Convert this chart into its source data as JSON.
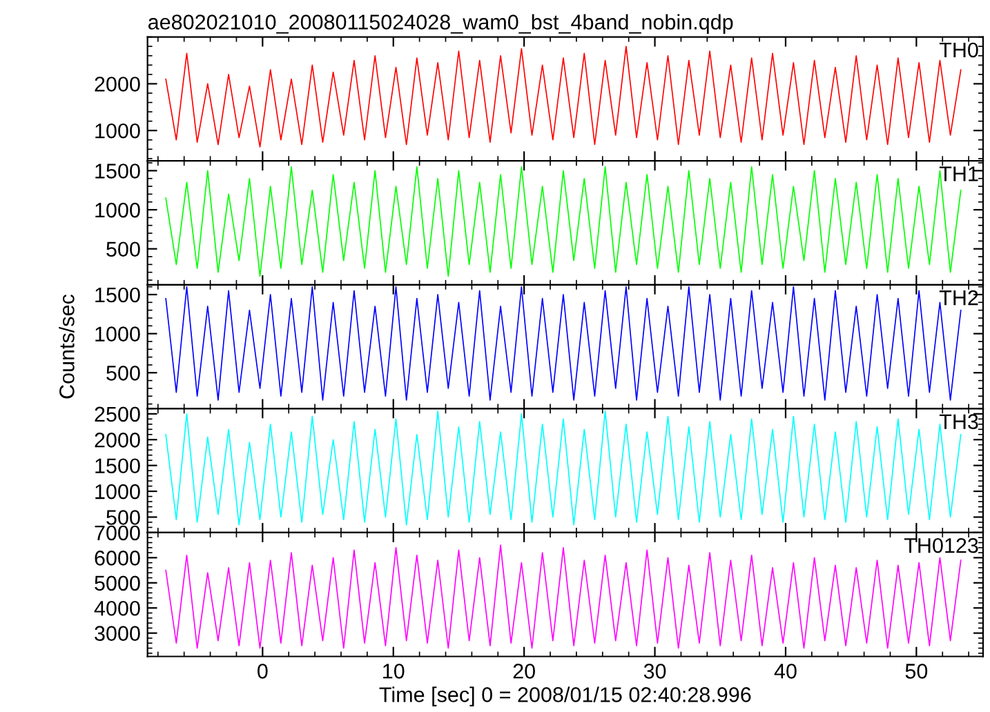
{
  "chart_data": [
    {
      "type": "line",
      "title": "ae802021010_20080115024028_wam0_bst_4band_nobin.qdp",
      "x": [
        -7.4,
        -6.6,
        -5.8,
        -5.0,
        -4.2,
        -3.4,
        -2.6,
        -1.8,
        -1.0,
        -0.2,
        0.6,
        1.4,
        2.2,
        3.0,
        3.8,
        4.6,
        5.4,
        6.2,
        7.0,
        7.8,
        8.6,
        9.4,
        10.2,
        11.0,
        11.8,
        12.6,
        13.4,
        14.2,
        15.0,
        15.8,
        16.6,
        17.4,
        18.2,
        19.0,
        19.8,
        20.6,
        21.4,
        22.2,
        23.0,
        23.8,
        24.6,
        25.4,
        26.2,
        27.0,
        27.8,
        28.6,
        29.4,
        30.2,
        31.0,
        31.8,
        32.6,
        33.4,
        34.2,
        35.0,
        35.8,
        36.6,
        37.4,
        38.2,
        39.0,
        39.8,
        40.6,
        41.4,
        42.2,
        43.0,
        43.8,
        44.6,
        45.4,
        46.2,
        47.0,
        47.8,
        48.6,
        49.4,
        50.2,
        51.0,
        51.8,
        52.6,
        53.4
      ],
      "series": [
        {
          "name": "TH0",
          "color": "#ff0000",
          "values": [
            2100,
            800,
            2650,
            750,
            2000,
            700,
            2200,
            850,
            1950,
            650,
            2300,
            800,
            2100,
            700,
            2400,
            750,
            2250,
            900,
            2500,
            800,
            2600,
            850,
            2350,
            700,
            2550,
            900,
            2450,
            800,
            2700,
            850,
            2500,
            750,
            2600,
            950,
            2750,
            900,
            2400,
            800,
            2550,
            850,
            2650,
            700,
            2500,
            900,
            2800,
            850,
            2450,
            800,
            2600,
            700,
            2500,
            900,
            2700,
            850,
            2400,
            750,
            2550,
            800,
            2650,
            900,
            2450,
            700,
            2500,
            850,
            2350,
            750,
            2600,
            800,
            2400,
            700,
            2550,
            850,
            2450,
            750,
            2500,
            900,
            2300
          ]
        }
      ],
      "xlim": [
        -8.8,
        55.1
      ],
      "xticks": [
        0,
        10,
        20,
        30,
        40,
        50
      ],
      "ylim": [
        350,
        3000
      ],
      "yticks": [
        1000,
        2000
      ],
      "tick_labels": "y"
    },
    {
      "type": "line",
      "x": [
        -7.4,
        -6.6,
        -5.8,
        -5.0,
        -4.2,
        -3.4,
        -2.6,
        -1.8,
        -1.0,
        -0.2,
        0.6,
        1.4,
        2.2,
        3.0,
        3.8,
        4.6,
        5.4,
        6.2,
        7.0,
        7.8,
        8.6,
        9.4,
        10.2,
        11.0,
        11.8,
        12.6,
        13.4,
        14.2,
        15.0,
        15.8,
        16.6,
        17.4,
        18.2,
        19.0,
        19.8,
        20.6,
        21.4,
        22.2,
        23.0,
        23.8,
        24.6,
        25.4,
        26.2,
        27.0,
        27.8,
        28.6,
        29.4,
        30.2,
        31.0,
        31.8,
        32.6,
        33.4,
        34.2,
        35.0,
        35.8,
        36.6,
        37.4,
        38.2,
        39.0,
        39.8,
        40.6,
        41.4,
        42.2,
        43.0,
        43.8,
        44.6,
        45.4,
        46.2,
        47.0,
        47.8,
        48.6,
        49.4,
        50.2,
        51.0,
        51.8,
        52.6,
        53.4
      ],
      "series": [
        {
          "name": "TH1",
          "color": "#00ff00",
          "values": [
            1150,
            300,
            1350,
            250,
            1500,
            200,
            1200,
            350,
            1400,
            150,
            1300,
            250,
            1550,
            300,
            1250,
            200,
            1450,
            350,
            1350,
            250,
            1500,
            200,
            1300,
            300,
            1550,
            250,
            1400,
            150,
            1500,
            300,
            1350,
            200,
            1450,
            250,
            1550,
            300,
            1300,
            200,
            1500,
            350,
            1400,
            250,
            1550,
            200,
            1350,
            300,
            1450,
            250,
            1300,
            200,
            1500,
            300,
            1400,
            250,
            1350,
            200,
            1550,
            300,
            1450,
            250,
            1300,
            350,
            1500,
            200,
            1400,
            300,
            1350,
            250,
            1450,
            200,
            1400,
            250,
            1300,
            300,
            1500,
            200,
            1250
          ]
        }
      ],
      "xlim": [
        -8.8,
        55.1
      ],
      "xticks": [
        0,
        10,
        20,
        30,
        40,
        50
      ],
      "ylim": [
        40,
        1625
      ],
      "yticks": [
        500,
        1000,
        1500
      ],
      "tick_labels": "y"
    },
    {
      "type": "line",
      "ylabel": "Counts/sec",
      "x": [
        -7.4,
        -6.6,
        -5.8,
        -5.0,
        -4.2,
        -3.4,
        -2.6,
        -1.8,
        -1.0,
        -0.2,
        0.6,
        1.4,
        2.2,
        3.0,
        3.8,
        4.6,
        5.4,
        6.2,
        7.0,
        7.8,
        8.6,
        9.4,
        10.2,
        11.0,
        11.8,
        12.6,
        13.4,
        14.2,
        15.0,
        15.8,
        16.6,
        17.4,
        18.2,
        19.0,
        19.8,
        20.6,
        21.4,
        22.2,
        23.0,
        23.8,
        24.6,
        25.4,
        26.2,
        27.0,
        27.8,
        28.6,
        29.4,
        30.2,
        31.0,
        31.8,
        32.6,
        33.4,
        34.2,
        35.0,
        35.8,
        36.6,
        37.4,
        38.2,
        39.0,
        39.8,
        40.6,
        41.4,
        42.2,
        43.0,
        43.8,
        44.6,
        45.4,
        46.2,
        47.0,
        47.8,
        48.6,
        49.4,
        50.2,
        51.0,
        51.8,
        52.6,
        53.4
      ],
      "series": [
        {
          "name": "TH2",
          "color": "#0000ff",
          "values": [
            1450,
            250,
            1600,
            200,
            1350,
            150,
            1550,
            250,
            1300,
            300,
            1500,
            200,
            1450,
            250,
            1600,
            150,
            1400,
            200,
            1550,
            250,
            1350,
            200,
            1600,
            150,
            1450,
            250,
            1500,
            300,
            1400,
            200,
            1550,
            150,
            1350,
            250,
            1600,
            200,
            1450,
            250,
            1500,
            150,
            1400,
            200,
            1550,
            300,
            1600,
            150,
            1450,
            250,
            1350,
            200,
            1600,
            250,
            1500,
            150,
            1450,
            200,
            1550,
            300,
            1400,
            250,
            1600,
            200,
            1450,
            150,
            1550,
            250,
            1350,
            200,
            1500,
            300,
            1450,
            200,
            1550,
            250,
            1400,
            150,
            1300
          ]
        }
      ],
      "xlim": [
        -8.8,
        55.1
      ],
      "xticks": [
        0,
        10,
        20,
        30,
        40,
        50
      ],
      "ylim": [
        40,
        1625
      ],
      "yticks": [
        500,
        1000,
        1500
      ],
      "tick_labels": "y"
    },
    {
      "type": "line",
      "x": [
        -7.4,
        -6.6,
        -5.8,
        -5.0,
        -4.2,
        -3.4,
        -2.6,
        -1.8,
        -1.0,
        -0.2,
        0.6,
        1.4,
        2.2,
        3.0,
        3.8,
        4.6,
        5.4,
        6.2,
        7.0,
        7.8,
        8.6,
        9.4,
        10.2,
        11.0,
        11.8,
        12.6,
        13.4,
        14.2,
        15.0,
        15.8,
        16.6,
        17.4,
        18.2,
        19.0,
        19.8,
        20.6,
        21.4,
        22.2,
        23.0,
        23.8,
        24.6,
        25.4,
        26.2,
        27.0,
        27.8,
        28.6,
        29.4,
        30.2,
        31.0,
        31.8,
        32.6,
        33.4,
        34.2,
        35.0,
        35.8,
        36.6,
        37.4,
        38.2,
        39.0,
        39.8,
        40.6,
        41.4,
        42.2,
        43.0,
        43.8,
        44.6,
        45.4,
        46.2,
        47.0,
        47.8,
        48.6,
        49.4,
        50.2,
        51.0,
        51.8,
        52.6,
        53.4
      ],
      "series": [
        {
          "name": "TH3",
          "color": "#00ffff",
          "values": [
            2100,
            450,
            2500,
            400,
            2050,
            550,
            2200,
            350,
            1950,
            450,
            2300,
            500,
            2150,
            400,
            2450,
            550,
            2000,
            450,
            2350,
            400,
            2200,
            500,
            2400,
            350,
            2100,
            450,
            2550,
            500,
            2250,
            400,
            2350,
            550,
            2150,
            450,
            2500,
            400,
            2300,
            500,
            2400,
            350,
            2200,
            450,
            2550,
            500,
            2300,
            400,
            2150,
            550,
            2450,
            450,
            2250,
            400,
            2350,
            500,
            2100,
            450,
            2400,
            550,
            2200,
            400,
            2450,
            500,
            2300,
            450,
            2150,
            400,
            2350,
            500,
            2250,
            450,
            2400,
            550,
            2200,
            450,
            2300,
            500,
            2100
          ]
        }
      ],
      "xlim": [
        -8.8,
        55.1
      ],
      "xticks": [
        0,
        10,
        20,
        30,
        40,
        50
      ],
      "ylim": [
        200,
        2600
      ],
      "yticks": [
        500,
        1000,
        1500,
        2000,
        2500
      ],
      "tick_labels": "y"
    },
    {
      "type": "line",
      "xlabel": "Time [sec] 0 = 2008/01/15 02:40:28.996",
      "x": [
        -7.4,
        -6.6,
        -5.8,
        -5.0,
        -4.2,
        -3.4,
        -2.6,
        -1.8,
        -1.0,
        -0.2,
        0.6,
        1.4,
        2.2,
        3.0,
        3.8,
        4.6,
        5.4,
        6.2,
        7.0,
        7.8,
        8.6,
        9.4,
        10.2,
        11.0,
        11.8,
        12.6,
        13.4,
        14.2,
        15.0,
        15.8,
        16.6,
        17.4,
        18.2,
        19.0,
        19.8,
        20.6,
        21.4,
        22.2,
        23.0,
        23.8,
        24.6,
        25.4,
        26.2,
        27.0,
        27.8,
        28.6,
        29.4,
        30.2,
        31.0,
        31.8,
        32.6,
        33.4,
        34.2,
        35.0,
        35.8,
        36.6,
        37.4,
        38.2,
        39.0,
        39.8,
        40.6,
        41.4,
        42.2,
        43.0,
        43.8,
        44.6,
        45.4,
        46.2,
        47.0,
        47.8,
        48.6,
        49.4,
        50.2,
        51.0,
        51.8,
        52.6,
        53.4
      ],
      "series": [
        {
          "name": "TH0123",
          "color": "#ff00ff",
          "values": [
            5500,
            2600,
            6100,
            2400,
            5400,
            2700,
            5600,
            2500,
            5800,
            2400,
            5900,
            2600,
            6200,
            2500,
            5700,
            2700,
            6000,
            2400,
            6300,
            2600,
            5800,
            2500,
            6400,
            2700,
            6100,
            2600,
            5900,
            2400,
            6300,
            2700,
            6000,
            2500,
            6500,
            2600,
            5800,
            2400,
            6200,
            2700,
            6400,
            2500,
            5900,
            2600,
            6100,
            2700,
            5800,
            2500,
            6300,
            2600,
            6000,
            2400,
            5700,
            2600,
            6200,
            2500,
            5900,
            2700,
            6100,
            2500,
            5600,
            2600,
            5800,
            2400,
            6000,
            2700,
            5700,
            2500,
            5600,
            2600,
            5900,
            2400,
            5700,
            2600,
            5800,
            2500,
            6000,
            2700,
            5900
          ]
        }
      ],
      "xlim": [
        -8.8,
        55.1
      ],
      "xticks": [
        0,
        10,
        20,
        30,
        40,
        50
      ],
      "ylim": [
        2070,
        7000
      ],
      "yticks": [
        3000,
        4000,
        5000,
        6000,
        7000
      ]
    }
  ]
}
